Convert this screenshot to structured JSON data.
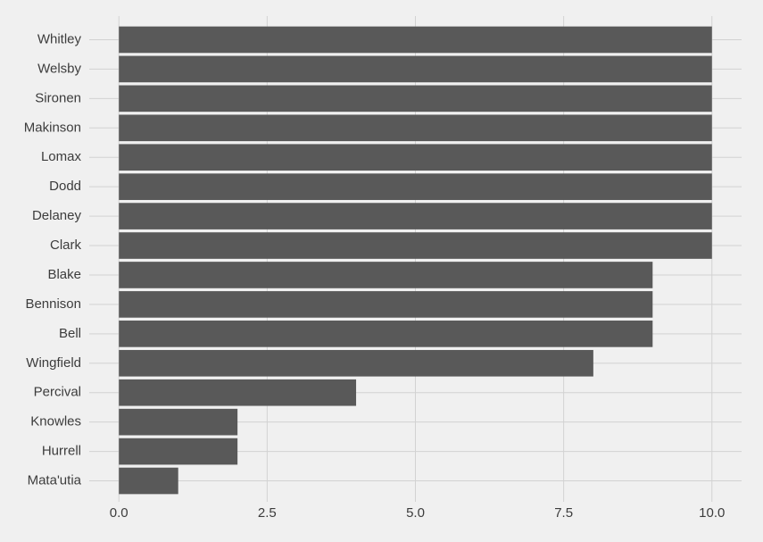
{
  "chart_data": {
    "type": "hbar",
    "categories": [
      "Whitley",
      "Welsby",
      "Sironen",
      "Makinson",
      "Lomax",
      "Dodd",
      "Delaney",
      "Clark",
      "Blake",
      "Bennison",
      "Bell",
      "Wingfield",
      "Percival",
      "Knowles",
      "Hurrell",
      "Mata'utia"
    ],
    "values": [
      10,
      10,
      10,
      10,
      10,
      10,
      10,
      10,
      9,
      9,
      9,
      8,
      4,
      2,
      2,
      1
    ],
    "color": "#595959",
    "xlim": [
      -0.5,
      10.5
    ],
    "xticks": [
      {
        "value": 0,
        "label": "0.0"
      },
      2.5,
      {
        "value": 5,
        "label": "5.0"
      },
      7.5,
      {
        "value": 10,
        "label": "10.0"
      }
    ],
    "grid": true
  }
}
